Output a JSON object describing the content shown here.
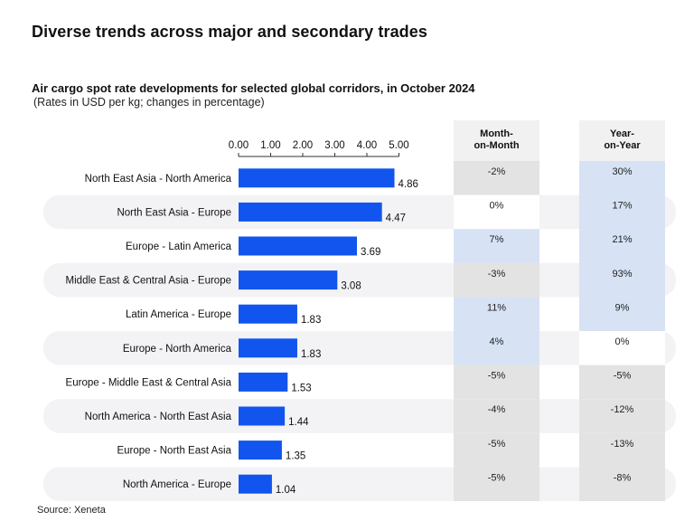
{
  "page": {
    "title": "Diverse trends across major and secondary trades",
    "source": "Source: Xeneta"
  },
  "colors": {
    "bar": "#1155ee",
    "stripe": "#f3f3f5",
    "cell_blue": "#d7e2f5",
    "cell_gray": "#e3e3e3",
    "cell_white": "#ffffff"
  },
  "chart_data": {
    "type": "bar",
    "orientation": "horizontal",
    "title": "Air cargo spot rate developments for selected global corridors, in October 2024",
    "subtitle": "(Rates in USD per kg; changes in percentage)",
    "categories": [
      "North East Asia - North America",
      "North East Asia - Europe",
      "Europe - Latin America",
      "Middle East & Central Asia - Europe",
      "Latin America - Europe",
      "Europe - North America",
      "Europe - Middle East & Central Asia",
      "North America - North East Asia",
      "Europe - North East Asia",
      "North America - Europe"
    ],
    "values": [
      4.86,
      4.47,
      3.69,
      3.08,
      1.83,
      1.83,
      1.53,
      1.44,
      1.35,
      1.04
    ],
    "value_labels": [
      "4.86",
      "4.47",
      "3.69",
      "3.08",
      "1.83",
      "1.83",
      "1.53",
      "1.44",
      "1.35",
      "1.04"
    ],
    "xlim": [
      0,
      5
    ],
    "xticks": [
      "0.00",
      "1.00",
      "2.00",
      "3.00",
      "4.00",
      "5.00"
    ],
    "axis_position": "top",
    "grid": false,
    "columns": [
      {
        "header_line1": "Month-",
        "header_line2": "on-Month",
        "values": [
          "-2%",
          "0%",
          "7%",
          "-3%",
          "11%",
          "4%",
          "-5%",
          "-4%",
          "-5%",
          "-5%"
        ],
        "cell_colors": [
          "gray",
          "white",
          "blue",
          "gray",
          "blue",
          "blue",
          "gray",
          "gray",
          "gray",
          "gray"
        ]
      },
      {
        "header_line1": "Year-",
        "header_line2": "on-Year",
        "values": [
          "30%",
          "17%",
          "21%",
          "93%",
          "9%",
          "0%",
          "-5%",
          "-12%",
          "-13%",
          "-8%"
        ],
        "cell_colors": [
          "blue",
          "blue",
          "blue",
          "blue",
          "blue",
          "white",
          "gray",
          "gray",
          "gray",
          "gray"
        ]
      }
    ]
  }
}
